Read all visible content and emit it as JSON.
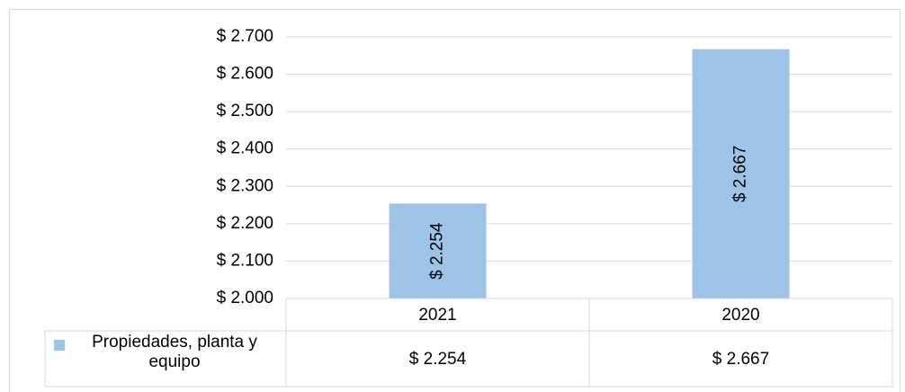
{
  "chart_data": {
    "type": "bar",
    "categories": [
      "2021",
      "2020"
    ],
    "series": [
      {
        "name": "Propiedades, planta y equipo",
        "color": "#9dc3e6",
        "values": [
          2254,
          2667
        ],
        "value_labels": [
          "$ 2.254",
          "$ 2.667"
        ]
      }
    ],
    "ylim": [
      2000,
      2700
    ],
    "yticks": [
      {
        "value": 2000,
        "label": "$ 2.000"
      },
      {
        "value": 2100,
        "label": "$ 2.100"
      },
      {
        "value": 2200,
        "label": "$ 2.200"
      },
      {
        "value": 2300,
        "label": "$ 2.300"
      },
      {
        "value": 2400,
        "label": "$ 2.400"
      },
      {
        "value": 2500,
        "label": "$ 2.500"
      },
      {
        "value": 2600,
        "label": "$ 2.600"
      },
      {
        "value": 2700,
        "label": "$ 2.700"
      }
    ],
    "grid": true,
    "data_table": true
  }
}
